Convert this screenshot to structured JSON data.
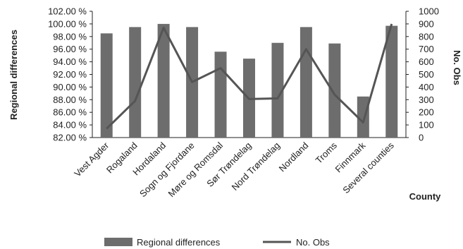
{
  "chart_data": {
    "type": "bar",
    "categories": [
      "Vest Agder",
      "Rogaland",
      "Hordaland",
      "Sogn og Fjordane",
      "Møre og Romsdal",
      "Sør Trøndelag",
      "Nord Trøndelag",
      "Nordland",
      "Troms",
      "Finnmark",
      "Several counties"
    ],
    "series": [
      {
        "name": "Regional differences",
        "type": "bar",
        "axis": "left",
        "color": "#6d6d6d",
        "values": [
          98.5,
          99.5,
          100.0,
          99.5,
          95.6,
          94.5,
          97.0,
          99.5,
          96.9,
          88.5,
          99.7
        ]
      },
      {
        "name": "No. Obs",
        "type": "line",
        "axis": "right",
        "color": "#555555",
        "values": [
          70,
          290,
          870,
          440,
          550,
          305,
          310,
          700,
          340,
          120,
          900
        ]
      }
    ],
    "xlabel": "County",
    "ylabel": "Regional differences",
    "y2label": "No. Obs",
    "ylim": [
      82,
      102
    ],
    "y2lim": [
      0,
      1000
    ],
    "yticks": [
      "82.00 %",
      "84.00 %",
      "86.00 %",
      "88.00 %",
      "90.00 %",
      "92.00 %",
      "94.00 %",
      "96.00 %",
      "98.00 %",
      "100.00 %",
      "102.00 %"
    ],
    "y2ticks": [
      "0",
      "100",
      "200",
      "300",
      "400",
      "500",
      "600",
      "700",
      "800",
      "900",
      "1000"
    ],
    "grid": false,
    "legend_position": "bottom"
  }
}
